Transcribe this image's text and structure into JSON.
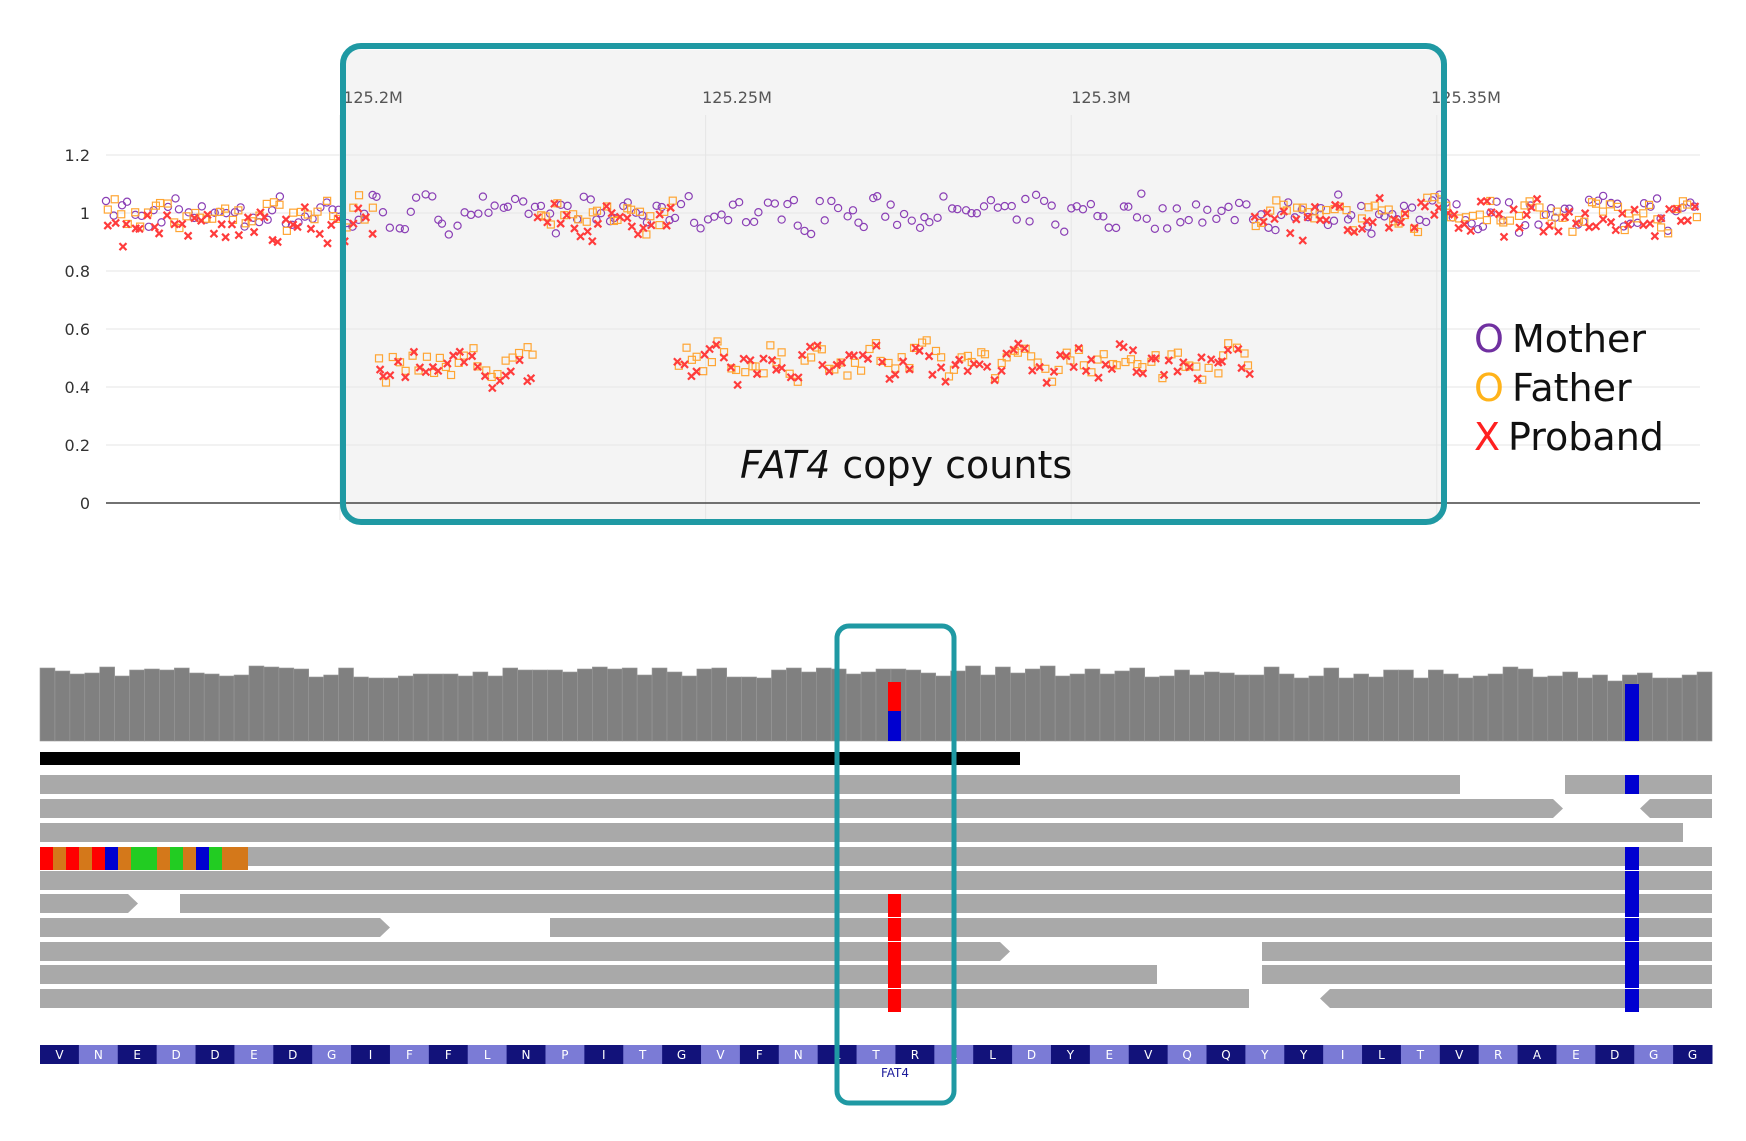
{
  "chart_data": {
    "type": "scatter",
    "caption_italic": "FAT4",
    "caption_rest": " copy counts",
    "x_ticks": [
      "125.2M",
      "125.25M",
      "125.3M",
      "125.35M"
    ],
    "y_ticks": [
      "1.2",
      "1",
      "0.8",
      "0.6",
      "0.4",
      "0.2",
      "0"
    ],
    "ylim": [
      0,
      1.2
    ],
    "xlim": [
      125.168,
      125.386
    ],
    "highlight_x_range": [
      125.2,
      125.35
    ],
    "legend": [
      {
        "marker": "O",
        "label": "Mother",
        "color": "#7030a0"
      },
      {
        "marker": "O",
        "label": "Father",
        "color": "#ffb31a"
      },
      {
        "marker": "X",
        "label": "Proband",
        "color": "#ff2020"
      }
    ],
    "series": [
      {
        "name": "Mother",
        "marker": "circle",
        "color": "#8a3fb5",
        "segments": [
          {
            "x0": 125.168,
            "x1": 125.386,
            "y": 1.0
          }
        ]
      },
      {
        "name": "Father",
        "marker": "square",
        "color": "#ffa533",
        "segments": [
          {
            "x0": 125.168,
            "x1": 125.205,
            "y": 1.0
          },
          {
            "x0": 125.205,
            "x1": 125.227,
            "y": 0.48
          },
          {
            "x0": 125.227,
            "x1": 125.246,
            "y": 1.0
          },
          {
            "x0": 125.246,
            "x1": 125.325,
            "y": 0.49
          },
          {
            "x0": 125.325,
            "x1": 125.386,
            "y": 1.0
          }
        ]
      },
      {
        "name": "Proband",
        "marker": "x",
        "color": "#ff3c3c",
        "segments": [
          {
            "x0": 125.168,
            "x1": 125.205,
            "y": 0.95
          },
          {
            "x0": 125.205,
            "x1": 125.227,
            "y": 0.46
          },
          {
            "x0": 125.227,
            "x1": 125.246,
            "y": 0.97
          },
          {
            "x0": 125.246,
            "x1": 125.325,
            "y": 0.48
          },
          {
            "x0": 125.325,
            "x1": 125.386,
            "y": 0.98
          }
        ]
      }
    ]
  },
  "igv": {
    "amino_acids": [
      "V",
      "N",
      "E",
      "D",
      "D",
      "E",
      "D",
      "G",
      "I",
      "F",
      "F",
      "L",
      "N",
      "P",
      "I",
      "T",
      "G",
      "V",
      "F",
      "N",
      "L",
      "T",
      "R",
      "L",
      "L",
      "D",
      "Y",
      "E",
      "V",
      "Q",
      "Q",
      "Y",
      "Y",
      "I",
      "L",
      "T",
      "V",
      "R",
      "A",
      "E",
      "D",
      "G",
      "G"
    ],
    "gene_label": "FAT4",
    "colors": {
      "coverage": "#808080",
      "read": "#a9a9a9",
      "mismatch_red": "#ff0000",
      "mismatch_blue": "#0000d0",
      "aa_dark": "#12127a",
      "aa_light": "#7b7bd6",
      "highlight_box": "#1f99a3"
    }
  }
}
